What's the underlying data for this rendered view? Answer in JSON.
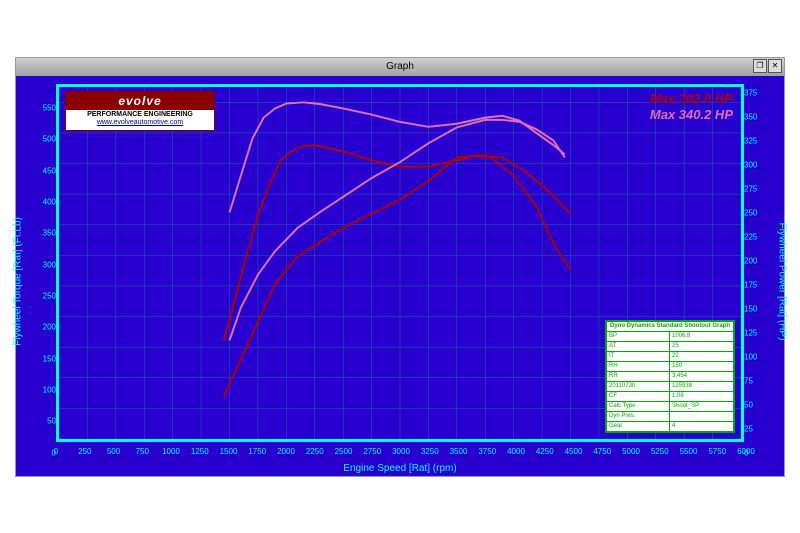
{
  "window": {
    "title": "Graph"
  },
  "logo": {
    "brand": "evolve",
    "sub": "PERFORMANCE ENGINEERING",
    "url": "www.evolveautomotive.com"
  },
  "annotations": {
    "max1": "Max 302.0 HP",
    "max1_color": "#b00000",
    "max2": "Max 340.2 HP",
    "max2_color": "#e070b0"
  },
  "axes": {
    "x": {
      "label": "Engine Speed [Rat] (rpm)",
      "min": 0,
      "max": 6000,
      "step": 250
    },
    "yleft": {
      "label": "Flywheel Torque [Rat] (Ft.Lb)",
      "min": 0,
      "max": 575,
      "step": 50
    },
    "yright": {
      "label": "Flywheel Power [Rat] (HP)",
      "min": 0,
      "max": 375,
      "step": 25
    }
  },
  "colors": {
    "bg": "#2800d0",
    "frame": "#00ffff",
    "grid": "#1a6fa0",
    "axis_text": "#00ffff",
    "stock": "#b00000",
    "tuned": "#e070b0"
  },
  "series": {
    "torque_stock": {
      "axis": "left",
      "color": "#b00000",
      "width": 2,
      "points": [
        [
          1450,
          160
        ],
        [
          1550,
          230
        ],
        [
          1650,
          300
        ],
        [
          1750,
          365
        ],
        [
          1850,
          415
        ],
        [
          1950,
          455
        ],
        [
          2050,
          470
        ],
        [
          2150,
          478
        ],
        [
          2250,
          480
        ],
        [
          2350,
          476
        ],
        [
          2500,
          470
        ],
        [
          2750,
          455
        ],
        [
          3000,
          445
        ],
        [
          3250,
          445
        ],
        [
          3500,
          455
        ],
        [
          3650,
          462
        ],
        [
          3800,
          460
        ],
        [
          4000,
          430
        ],
        [
          4200,
          380
        ],
        [
          4350,
          320
        ],
        [
          4500,
          275
        ]
      ]
    },
    "torque_tuned": {
      "axis": "left",
      "color": "#e070b0",
      "width": 2,
      "points": [
        [
          1500,
          370
        ],
        [
          1600,
          430
        ],
        [
          1700,
          490
        ],
        [
          1800,
          525
        ],
        [
          1900,
          540
        ],
        [
          2000,
          548
        ],
        [
          2150,
          550
        ],
        [
          2300,
          547
        ],
        [
          2500,
          540
        ],
        [
          2750,
          530
        ],
        [
          3000,
          518
        ],
        [
          3250,
          510
        ],
        [
          3500,
          515
        ],
        [
          3750,
          525
        ],
        [
          3900,
          528
        ],
        [
          4050,
          520
        ],
        [
          4200,
          500
        ],
        [
          4350,
          480
        ],
        [
          4450,
          465
        ]
      ]
    },
    "power_stock": {
      "axis": "right",
      "color": "#b00000",
      "width": 2,
      "points": [
        [
          1450,
          45
        ],
        [
          1600,
          85
        ],
        [
          1750,
          125
        ],
        [
          1900,
          165
        ],
        [
          2100,
          195
        ],
        [
          2300,
          210
        ],
        [
          2500,
          225
        ],
        [
          2750,
          240
        ],
        [
          3000,
          255
        ],
        [
          3250,
          275
        ],
        [
          3500,
          300
        ],
        [
          3700,
          302
        ],
        [
          3900,
          300
        ],
        [
          4100,
          285
        ],
        [
          4300,
          265
        ],
        [
          4500,
          240
        ]
      ]
    },
    "power_tuned": {
      "axis": "right",
      "color": "#e070b0",
      "width": 2,
      "points": [
        [
          1500,
          105
        ],
        [
          1600,
          140
        ],
        [
          1750,
          175
        ],
        [
          1900,
          200
        ],
        [
          2100,
          225
        ],
        [
          2300,
          242
        ],
        [
          2500,
          258
        ],
        [
          2750,
          278
        ],
        [
          3000,
          295
        ],
        [
          3250,
          315
        ],
        [
          3500,
          332
        ],
        [
          3750,
          340
        ],
        [
          3900,
          340
        ],
        [
          4050,
          338
        ],
        [
          4200,
          330
        ],
        [
          4350,
          318
        ],
        [
          4450,
          300
        ]
      ]
    }
  },
  "infobox": {
    "header": "Dyno Dynamics Standard Shootout Graph",
    "rows": [
      [
        "BP",
        "1006.8"
      ],
      [
        "AT",
        "25"
      ],
      [
        "IT",
        "22"
      ],
      [
        "RH",
        "150"
      ],
      [
        "RR",
        "3.454"
      ],
      [
        "20110730",
        "125938"
      ],
      [
        "CF",
        "1.08"
      ],
      [
        "Calc Type",
        "Shoot_SP"
      ],
      [
        "Dyn Pres.",
        ""
      ],
      [
        "Gear",
        "4"
      ]
    ]
  }
}
